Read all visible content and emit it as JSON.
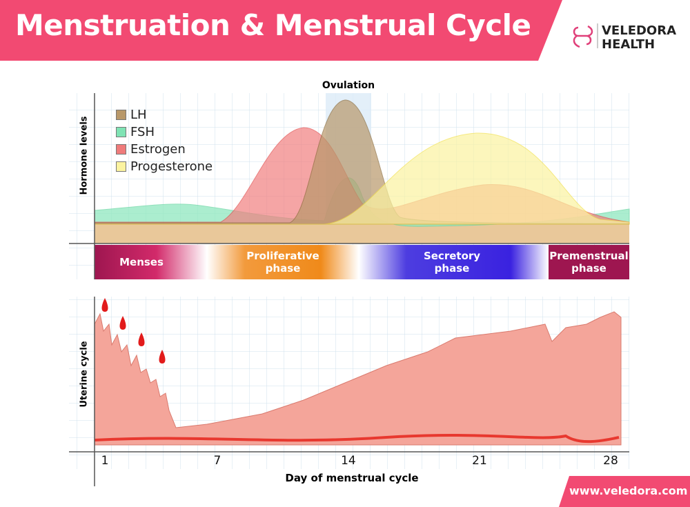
{
  "header": {
    "title": "Menstruation & Menstrual Cycle",
    "brand": [
      "VELEDORA",
      "HEALTH"
    ]
  },
  "hormone_chart": {
    "annotation": "Ovulation",
    "y_label": "Hormone levels",
    "legend": [
      {
        "name": "LH",
        "color": "#b8986a"
      },
      {
        "name": "FSH",
        "color": "#7fe3b4"
      },
      {
        "name": "Estrogen",
        "color": "#ef7b7b"
      },
      {
        "name": "Progesterone",
        "color": "#fbf3a0"
      }
    ],
    "phases": [
      "Menses",
      "Proliferative phase",
      "Secretory phase",
      "Premenstrual phase"
    ]
  },
  "uterine_chart": {
    "y_label": "Uterine cycle"
  },
  "x_axis": {
    "ticks": [
      1,
      7,
      14,
      21,
      28
    ],
    "label": "Day of menstrual cycle"
  },
  "footer": {
    "url": "www.veledora.com"
  }
}
